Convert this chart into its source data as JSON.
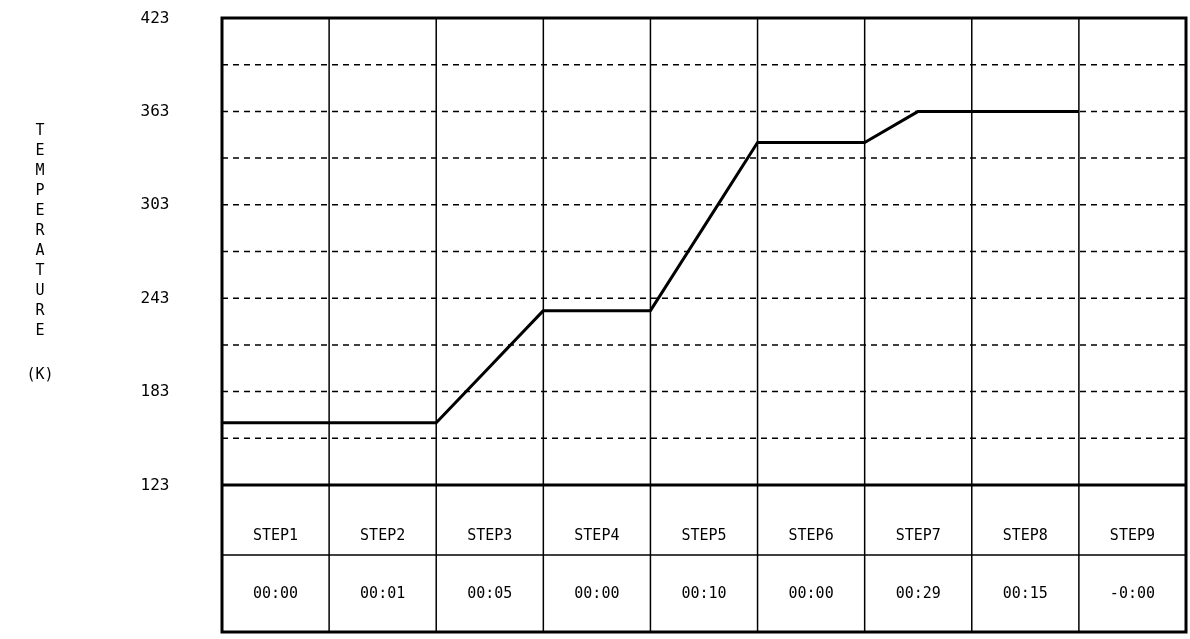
{
  "chart_data": {
    "type": "line",
    "ylabel": "TEMPERATURE (K)",
    "categories": [
      null,
      "STEP1",
      null,
      "STEP2",
      null,
      "STEP3",
      null,
      "STEP4",
      null,
      "STEP5",
      null,
      "STEP6",
      null,
      "STEP7",
      null,
      "STEP8",
      null,
      "STEP9",
      null
    ],
    "series": [
      {
        "color": "#000000",
        "values": [
          163,
          163,
          163,
          163,
          163,
          199,
          235,
          235,
          235,
          289,
          343,
          343,
          343,
          363,
          363,
          363,
          363,
          null,
          null
        ]
      }
    ],
    "annotations": [
      "00:00",
      "00:01",
      "00:05",
      "00:00",
      "00:10",
      "00:00",
      "00:29",
      "00:15",
      "-0:00"
    ],
    "ylim": [
      123,
      423
    ],
    "yticks": [
      123,
      {
        "value": 153,
        "label": null
      },
      183,
      {
        "value": 213,
        "label": null
      },
      243,
      {
        "value": 273,
        "label": null
      },
      303,
      {
        "value": 333,
        "label": null
      },
      363,
      {
        "value": 393,
        "label": null
      },
      423
    ],
    "grid": true,
    "line_style": "solid"
  }
}
